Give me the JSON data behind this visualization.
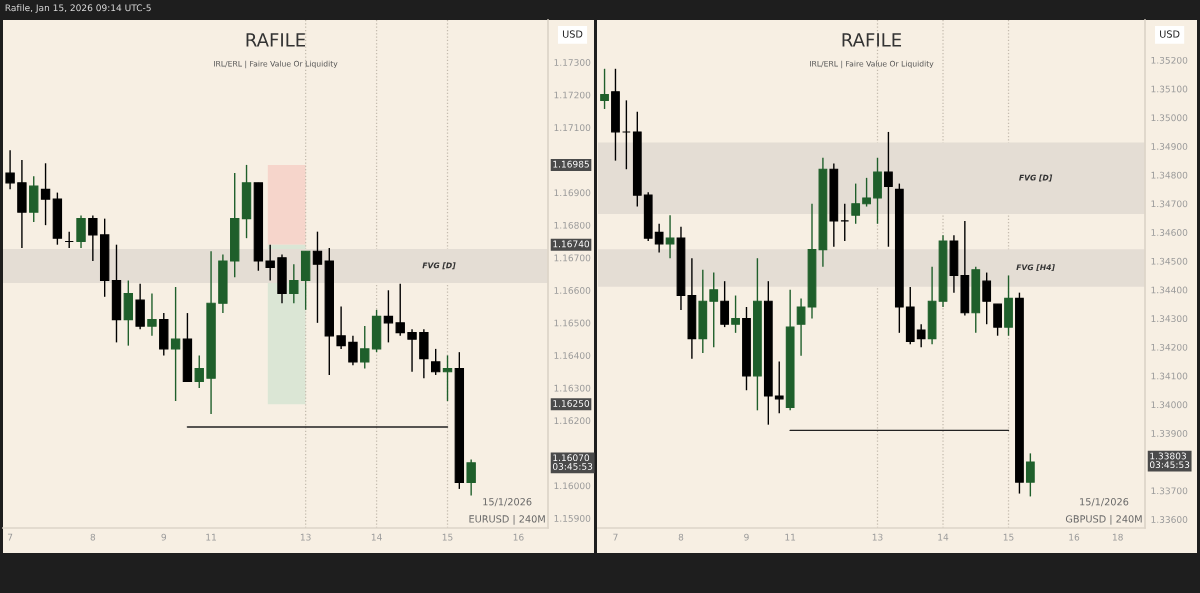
{
  "chart_data": [
    {
      "type": "candlestick",
      "title": "RAFILE",
      "subtitle": "IRL/ERL | Faire Value Or Liquidity",
      "ylabel": "USD",
      "categories": [
        "7",
        null,
        null,
        null,
        null,
        null,
        null,
        "8",
        null,
        null,
        null,
        null,
        null,
        "9",
        null,
        null,
        null,
        "11",
        null,
        null,
        null,
        null,
        null,
        null,
        null,
        "13",
        null,
        null,
        null,
        null,
        null,
        "14",
        null,
        null,
        null,
        null,
        null,
        "15",
        null,
        null,
        null,
        null,
        null,
        "16",
        null,
        null
      ],
      "ohlc": [
        [
          1.1696,
          1.1703,
          1.1691,
          1.1693
        ],
        [
          1.1693,
          1.17,
          1.1673,
          1.1684
        ],
        [
          1.1684,
          1.1695,
          1.1681,
          1.1692
        ],
        [
          1.1691,
          1.1699,
          1.168,
          1.1688
        ],
        [
          1.1688,
          1.169,
          1.1674,
          1.1676
        ],
        [
          1.1675,
          1.1678,
          1.1673,
          1.1675
        ],
        [
          1.1675,
          1.1683,
          1.1673,
          1.1682
        ],
        [
          1.1682,
          1.1683,
          1.1669,
          1.1677
        ],
        [
          1.1677,
          1.1682,
          1.1658,
          1.1663
        ],
        [
          1.1663,
          1.1674,
          1.1644,
          1.1651
        ],
        [
          1.1651,
          1.1663,
          1.1643,
          1.1659
        ],
        [
          1.1657,
          1.1662,
          1.1648,
          1.1649
        ],
        [
          1.1649,
          1.1659,
          1.1646,
          1.1651
        ],
        [
          1.1651,
          1.1653,
          1.164,
          1.1642
        ],
        [
          1.1642,
          1.1661,
          1.1626,
          1.1645
        ],
        [
          1.1645,
          1.1653,
          1.1632,
          1.1632
        ],
        [
          1.1632,
          1.164,
          1.163,
          1.1636
        ],
        [
          1.1633,
          1.1672,
          1.1622,
          1.1656
        ],
        [
          1.1656,
          1.1671,
          1.1653,
          1.1669
        ],
        [
          1.1669,
          1.1696,
          1.1664,
          1.1682
        ],
        [
          1.1682,
          1.16985,
          1.1676,
          1.1693
        ],
        [
          1.1693,
          1.1693,
          1.1666,
          1.1669
        ],
        [
          1.1669,
          1.1674,
          1.1663,
          1.1667
        ],
        [
          1.167,
          1.1671,
          1.1656,
          1.1659
        ],
        [
          1.1659,
          1.1668,
          1.1656,
          1.1663
        ],
        [
          1.1663,
          1.1672,
          1.1654,
          1.1672
        ],
        [
          1.1672,
          1.1678,
          1.165,
          1.1668
        ],
        [
          1.1669,
          1.1673,
          1.1634,
          1.1646
        ],
        [
          1.1646,
          1.1655,
          1.1642,
          1.1643
        ],
        [
          1.1644,
          1.1646,
          1.1637,
          1.1638
        ],
        [
          1.1638,
          1.1649,
          1.1636,
          1.1642
        ],
        [
          1.1642,
          1.1654,
          1.1641,
          1.1652
        ],
        [
          1.1652,
          1.166,
          1.1644,
          1.165
        ],
        [
          1.165,
          1.1662,
          1.1646,
          1.1647
        ],
        [
          1.1647,
          1.1648,
          1.1635,
          1.1645
        ],
        [
          1.1647,
          1.1648,
          1.1633,
          1.1639
        ],
        [
          1.1638,
          1.1642,
          1.1634,
          1.1635
        ],
        [
          1.1635,
          1.164,
          1.1626,
          1.1636
        ],
        [
          1.1636,
          1.1641,
          1.1599,
          1.1601
        ],
        [
          1.1601,
          1.1608,
          1.1597,
          1.1607
        ],
        null,
        null,
        null,
        null,
        null,
        null
      ],
      "colors": [
        "#000000",
        "#000000",
        "#1f5f2b",
        "#000000",
        "#000000",
        "#000000",
        "#1f5f2b",
        "#000000",
        "#000000",
        "#000000",
        "#1f5f2b",
        "#000000",
        "#1f5f2b",
        "#000000",
        "#1f5f2b",
        "#000000",
        "#1f5f2b",
        "#1f5f2b",
        "#1f5f2b",
        "#1f5f2b",
        "#1f5f2b",
        "#000000",
        "#000000",
        "#000000",
        "#1f5f2b",
        "#1f5f2b",
        "#000000",
        "#000000",
        "#000000",
        "#000000",
        "#1f5f2b",
        "#1f5f2b",
        "#000000",
        "#000000",
        "#000000",
        "#000000",
        "#000000",
        "#1f5f2b",
        "#000000",
        "#1f5f2b",
        null,
        null,
        null,
        null,
        null,
        null
      ],
      "series": [
        {
          "type": "line",
          "color": "#222222",
          "values": [
            null,
            null,
            null,
            null,
            null,
            null,
            null,
            null,
            null,
            null,
            null,
            null,
            null,
            null,
            null,
            1.1618,
            1.1618,
            1.1618,
            1.1618,
            1.1618,
            1.1618,
            1.1618,
            1.1618,
            1.1618,
            1.1618,
            1.1618,
            1.1618,
            1.1618,
            1.1618,
            1.1618,
            1.1618,
            1.1618,
            1.1618,
            1.1618,
            1.1618,
            1.1618,
            1.1618,
            1.1618,
            null,
            null,
            null,
            null,
            null,
            null,
            null,
            null
          ]
        }
      ],
      "bands": [
        {
          "axis": "y",
          "from": 1.16622,
          "to": 1.16727,
          "label": "FVG [D]",
          "color": "#e4ddd4"
        }
      ],
      "ref_lines": [
        {
          "axis": "x",
          "value": "13",
          "color": "#c4bbae",
          "line_style": "dotted"
        },
        {
          "axis": "x",
          "value": "14",
          "color": "#c4bbae",
          "line_style": "dotted"
        },
        {
          "axis": "x",
          "value": "15",
          "color": "#c4bbae",
          "line_style": "dotted"
        }
      ],
      "annotations": [
        "Rafile, Jan 15, 2026 09:14 UTC-5",
        "15/1/2026",
        "EURUSD | 240M",
        "1.16985",
        "1.16740",
        "1.16250",
        "1.16070\n03:45:53"
      ],
      "ylim": [
        1.1587,
        1.1743
      ],
      "yticks": [
        {
          "value": 1.159,
          "label": "1.15900"
        },
        {
          "value": 1.16,
          "label": "1.16000"
        },
        {
          "value": 1.162,
          "label": "1.16200"
        },
        {
          "value": 1.163,
          "label": "1.16300"
        },
        {
          "value": 1.164,
          "label": "1.16400"
        },
        {
          "value": 1.165,
          "label": "1.16500"
        },
        {
          "value": 1.166,
          "label": "1.16600"
        },
        {
          "value": 1.167,
          "label": "1.16700"
        },
        {
          "value": 1.168,
          "label": "1.16800"
        },
        {
          "value": 1.169,
          "label": "1.16900"
        },
        {
          "value": 1.171,
          "label": "1.17100"
        },
        {
          "value": 1.172,
          "label": "1.17200"
        },
        {
          "value": 1.173,
          "label": "1.17300"
        }
      ],
      "grid": false
    },
    {
      "type": "candlestick",
      "title": "RAFILE",
      "subtitle": "IRL/ERL | Faire Value Or Liquidity",
      "ylabel": "USD",
      "categories": [
        null,
        "7",
        null,
        null,
        null,
        null,
        null,
        "8",
        null,
        null,
        null,
        null,
        null,
        "9",
        null,
        null,
        null,
        "11",
        null,
        null,
        null,
        null,
        null,
        null,
        null,
        "13",
        null,
        null,
        null,
        null,
        null,
        "14",
        null,
        null,
        null,
        null,
        null,
        "15",
        null,
        null,
        null,
        null,
        null,
        "16",
        null,
        null,
        null,
        "18",
        null,
        null
      ],
      "ohlc": [
        [
          1.3506,
          1.3517,
          1.3503,
          1.3508
        ],
        [
          1.3509,
          1.3517,
          1.3485,
          1.3495
        ],
        [
          1.3495,
          1.3506,
          1.3482,
          1.3495
        ],
        [
          1.3495,
          1.3502,
          1.3469,
          1.3473
        ],
        [
          1.3473,
          1.3474,
          1.3457,
          1.3458
        ],
        [
          1.346,
          1.3463,
          1.3453,
          1.3456
        ],
        [
          1.3456,
          1.3466,
          1.3451,
          1.3458
        ],
        [
          1.3458,
          1.3462,
          1.3433,
          1.3438
        ],
        [
          1.3438,
          1.3451,
          1.3416,
          1.3423
        ],
        [
          1.3423,
          1.3447,
          1.3418,
          1.3436
        ],
        [
          1.3436,
          1.3446,
          1.342,
          1.344
        ],
        [
          1.3436,
          1.3443,
          1.3427,
          1.3428
        ],
        [
          1.3428,
          1.3438,
          1.3425,
          1.343
        ],
        [
          1.343,
          1.3434,
          1.3405,
          1.341
        ],
        [
          1.341,
          1.3451,
          1.3398,
          1.3436
        ],
        [
          1.3436,
          1.3443,
          1.3393,
          1.3403
        ],
        [
          1.3403,
          1.3415,
          1.3397,
          1.3402
        ],
        [
          1.3399,
          1.344,
          1.3398,
          1.3427
        ],
        [
          1.3428,
          1.3437,
          1.3417,
          1.3434
        ],
        [
          1.3434,
          1.347,
          1.343,
          1.3454
        ],
        [
          1.3454,
          1.3486,
          1.3448,
          1.3482
        ],
        [
          1.3482,
          1.3484,
          1.3455,
          1.3464
        ],
        [
          1.3464,
          1.347,
          1.3457,
          1.3464
        ],
        [
          1.3466,
          1.3477,
          1.3463,
          1.347
        ],
        [
          1.347,
          1.3479,
          1.3469,
          1.3472
        ],
        [
          1.3472,
          1.3486,
          1.3463,
          1.3481
        ],
        [
          1.3481,
          1.3495,
          1.3455,
          1.3476
        ],
        [
          1.3475,
          1.3477,
          1.3425,
          1.3434
        ],
        [
          1.3434,
          1.3441,
          1.3421,
          1.3422
        ],
        [
          1.3426,
          1.3428,
          1.342,
          1.3423
        ],
        [
          1.3423,
          1.3448,
          1.3421,
          1.3436
        ],
        [
          1.3436,
          1.3459,
          1.3434,
          1.3457
        ],
        [
          1.3457,
          1.3459,
          1.3439,
          1.3445
        ],
        [
          1.3445,
          1.3464,
          1.3431,
          1.3432
        ],
        [
          1.3432,
          1.3448,
          1.3425,
          1.3447
        ],
        [
          1.3443,
          1.3446,
          1.3428,
          1.3436
        ],
        [
          1.3435,
          1.3435,
          1.3424,
          1.3427
        ],
        [
          1.3427,
          1.3445,
          1.3424,
          1.3437
        ],
        [
          1.3437,
          1.3439,
          1.3369,
          1.3373
        ],
        [
          1.3373,
          1.3383,
          1.3368,
          1.338
        ],
        null,
        null,
        null,
        null,
        null,
        null,
        null,
        null,
        null,
        null
      ],
      "colors": [
        "#1f5f2b",
        "#000000",
        "#000000",
        "#000000",
        "#000000",
        "#000000",
        "#1f5f2b",
        "#000000",
        "#000000",
        "#1f5f2b",
        "#1f5f2b",
        "#000000",
        "#1f5f2b",
        "#000000",
        "#1f5f2b",
        "#000000",
        "#000000",
        "#1f5f2b",
        "#1f5f2b",
        "#1f5f2b",
        "#1f5f2b",
        "#000000",
        "#000000",
        "#1f5f2b",
        "#1f5f2b",
        "#1f5f2b",
        "#000000",
        "#000000",
        "#000000",
        "#000000",
        "#1f5f2b",
        "#1f5f2b",
        "#000000",
        "#000000",
        "#1f5f2b",
        "#000000",
        "#000000",
        "#1f5f2b",
        "#000000",
        "#1f5f2b",
        null,
        null,
        null,
        null,
        null,
        null,
        null,
        null,
        null,
        null
      ],
      "series": [
        {
          "type": "line",
          "color": "#222222",
          "values": [
            null,
            null,
            null,
            null,
            null,
            null,
            null,
            null,
            null,
            null,
            null,
            null,
            null,
            null,
            null,
            null,
            null,
            1.3391,
            1.3391,
            1.3391,
            1.3391,
            1.3391,
            1.3391,
            1.3391,
            1.3391,
            1.3391,
            1.3391,
            1.3391,
            1.3391,
            1.3391,
            1.3391,
            1.3391,
            1.3391,
            1.3391,
            1.3391,
            1.3391,
            1.3391,
            1.3391,
            null,
            null,
            null,
            null,
            null,
            null,
            null,
            null,
            null,
            null,
            null,
            null
          ]
        }
      ],
      "bands": [
        {
          "axis": "y",
          "from": 1.34664,
          "to": 1.34913,
          "label": "FVG [D]",
          "color": "#e4ddd4"
        },
        {
          "axis": "y",
          "from": 1.34411,
          "to": 1.34541,
          "label": "FVG [H4]",
          "color": "#e4ddd4"
        }
      ],
      "ref_lines": [
        {
          "axis": "x",
          "value": "13",
          "color": "#c4bbae",
          "line_style": "dotted"
        },
        {
          "axis": "x",
          "value": "14",
          "color": "#c4bbae",
          "line_style": "dotted"
        },
        {
          "axis": "x",
          "value": "15",
          "color": "#c4bbae",
          "line_style": "dotted"
        }
      ],
      "annotations": [
        "15/1/2026",
        "GBPUSD | 240M",
        "1.33803\n03:45:53"
      ],
      "ylim": [
        1.3357,
        1.3534
      ],
      "yticks": [
        {
          "value": 1.336,
          "label": "1.33600"
        },
        {
          "value": 1.337,
          "label": "1.33700"
        },
        {
          "value": 1.339,
          "label": "1.33900"
        },
        {
          "value": 1.34,
          "label": "1.34000"
        },
        {
          "value": 1.341,
          "label": "1.34100"
        },
        {
          "value": 1.342,
          "label": "1.34200"
        },
        {
          "value": 1.343,
          "label": "1.34300"
        },
        {
          "value": 1.344,
          "label": "1.34400"
        },
        {
          "value": 1.345,
          "label": "1.34500"
        },
        {
          "value": 1.346,
          "label": "1.34600"
        },
        {
          "value": 1.347,
          "label": "1.34700"
        },
        {
          "value": 1.348,
          "label": "1.34800"
        },
        {
          "value": 1.349,
          "label": "1.34900"
        },
        {
          "value": 1.35,
          "label": "1.35000"
        },
        {
          "value": 1.351,
          "label": "1.35100"
        },
        {
          "value": 1.352,
          "label": "1.35200"
        }
      ],
      "grid": false
    }
  ]
}
